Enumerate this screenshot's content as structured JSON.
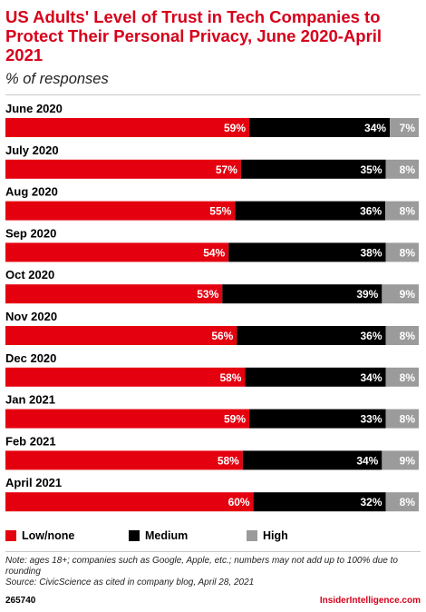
{
  "chart_data": {
    "type": "bar",
    "orientation": "horizontal",
    "stacked": true,
    "title": "US Adults' Level of Trust in Tech Companies to Protect Their Personal Privacy, June 2020-April 2021",
    "subtitle": "% of responses",
    "categories": [
      "June 2020",
      "July 2020",
      "Aug 2020",
      "Sep 2020",
      "Oct 2020",
      "Nov 2020",
      "Dec 2020",
      "Jan 2021",
      "Feb 2021",
      "April 2021"
    ],
    "series": [
      {
        "name": "Low/none",
        "color": "#e4000f",
        "values": [
          59,
          57,
          55,
          54,
          53,
          56,
          58,
          59,
          58,
          60
        ]
      },
      {
        "name": "Medium",
        "color": "#000000",
        "values": [
          34,
          35,
          36,
          38,
          39,
          36,
          34,
          33,
          34,
          32
        ]
      },
      {
        "name": "High",
        "color": "#9b9b9b",
        "values": [
          7,
          8,
          8,
          8,
          9,
          8,
          8,
          8,
          9,
          8
        ]
      }
    ],
    "value_suffix": "%",
    "legend_position": "bottom",
    "grid": false
  },
  "note": "Note: ages 18+; companies such as Google, Apple, etc.; numbers may not add up to 100% due to rounding",
  "source": "Source: CivicScience as cited in company blog, April 28, 2021",
  "chart_id": "265740",
  "brand": "InsiderIntelligence.com"
}
